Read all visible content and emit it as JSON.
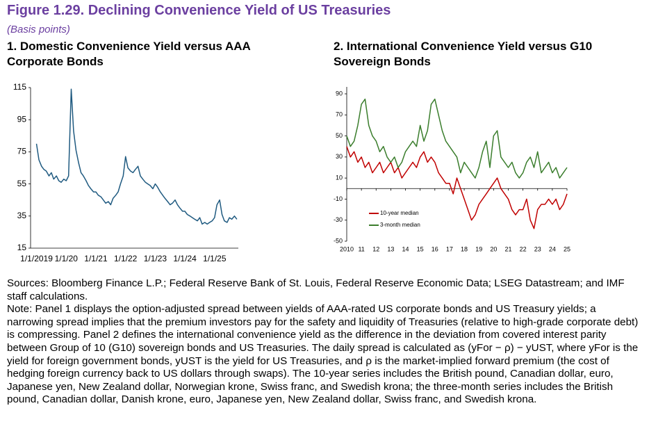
{
  "figure": {
    "title": "Figure 1.29. Declining Convenience Yield of US Treasuries",
    "subtitle": "(Basis points)",
    "sources": "Sources: Bloomberg Finance L.P.; Federal Reserve Bank of St. Louis, Federal Reserve Economic Data; LSEG Datastream; and IMF staff calculations.",
    "note": "Note: Panel 1 displays the option-adjusted spread between yields of AAA-rated US corporate bonds and US Treasury yields; a narrowing spread implies that the premium investors pay for the safety and liquidity of Treasuries (relative to high-grade corporate debt) is compressing. Panel 2 defines the international convenience yield as the difference in the deviation from covered interest parity between Group of 10 (G10) sovereign bonds and US Treasuries. The daily spread is calculated as (yFor − ρ) − yUST, where yFor is the yield for foreign government bonds, yUST is the yield for US Treasuries, and ρ is the market-implied forward premium (the cost of hedging foreign currency back to US dollars through swaps). The 10-year series includes the British pound, Canadian dollar, euro, Japanese yen, New Zealand dollar, Norwegian krone, Swiss franc, and Swedish krona; the three-month series includes the British pound, Canadian dollar, Danish krone, euro, Japanese yen, New Zealand dollar, Swiss franc, and Swedish krona."
  },
  "chart_data": [
    {
      "type": "line",
      "title": "1. Domestic Convenience Yield versus AAA Corporate Bonds",
      "color": "#1f5a80",
      "x": [
        2019,
        2019.08,
        2019.17,
        2019.25,
        2019.33,
        2019.42,
        2019.5,
        2019.58,
        2019.67,
        2019.75,
        2019.83,
        2019.92,
        2020,
        2020.08,
        2020.17,
        2020.25,
        2020.33,
        2020.42,
        2020.5,
        2020.58,
        2020.67,
        2020.75,
        2020.83,
        2020.92,
        2021,
        2021.08,
        2021.17,
        2021.25,
        2021.33,
        2021.42,
        2021.5,
        2021.58,
        2021.67,
        2021.75,
        2021.83,
        2021.92,
        2022,
        2022.08,
        2022.17,
        2022.25,
        2022.33,
        2022.42,
        2022.5,
        2022.58,
        2022.67,
        2022.75,
        2022.83,
        2022.92,
        2023,
        2023.08,
        2023.17,
        2023.25,
        2023.33,
        2023.42,
        2023.5,
        2023.58,
        2023.67,
        2023.75,
        2023.83,
        2023.92,
        2024,
        2024.08,
        2024.17,
        2024.25,
        2024.33,
        2024.42,
        2024.5,
        2024.58,
        2024.67,
        2024.75,
        2024.83,
        2024.92,
        2025,
        2025.08,
        2025.17,
        2025.25,
        2025.33,
        2025.42,
        2025.5,
        2025.58,
        2025.67,
        2025.75
      ],
      "values": [
        80,
        70,
        66,
        64,
        63,
        60,
        62,
        58,
        60,
        57,
        56,
        58,
        57,
        60,
        114,
        88,
        76,
        68,
        62,
        60,
        57,
        54,
        52,
        50,
        50,
        48,
        47,
        45,
        43,
        44,
        42,
        46,
        48,
        50,
        55,
        60,
        72,
        65,
        63,
        62,
        64,
        66,
        60,
        58,
        56,
        55,
        54,
        52,
        55,
        53,
        50,
        48,
        46,
        44,
        42,
        43,
        45,
        42,
        40,
        38,
        38,
        36,
        35,
        34,
        33,
        32,
        34,
        30,
        31,
        30,
        31,
        32,
        34,
        42,
        45,
        36,
        32,
        31,
        34,
        33,
        35,
        33
      ],
      "xlim": [
        2018.8,
        2025.8
      ],
      "xticks": [
        {
          "value": 2019,
          "label": "1/1/2019"
        },
        {
          "value": 2020,
          "label": "1/1/20"
        },
        {
          "value": 2021,
          "label": "1/1/21"
        },
        {
          "value": 2022,
          "label": "1/1/22"
        },
        {
          "value": 2023,
          "label": "1/1/23"
        },
        {
          "value": 2024,
          "label": "1/1/24"
        },
        {
          "value": 2025,
          "label": "1/1/25"
        }
      ],
      "ylim": [
        15,
        115
      ],
      "yticks": [
        15,
        35,
        55,
        75,
        95,
        115
      ]
    },
    {
      "type": "line",
      "title": "2. International Convenience Yield versus G10 Sovereign Bonds",
      "legend": "lower left",
      "x": [
        2010,
        2010.25,
        2010.5,
        2010.75,
        2011,
        2011.25,
        2011.5,
        2011.75,
        2012,
        2012.25,
        2012.5,
        2012.75,
        2013,
        2013.25,
        2013.5,
        2013.75,
        2014,
        2014.25,
        2014.5,
        2014.75,
        2015,
        2015.25,
        2015.5,
        2015.75,
        2016,
        2016.25,
        2016.5,
        2016.75,
        2017,
        2017.25,
        2017.5,
        2017.75,
        2018,
        2018.25,
        2018.5,
        2018.75,
        2019,
        2019.25,
        2019.5,
        2019.75,
        2020,
        2020.25,
        2020.5,
        2020.75,
        2021,
        2021.25,
        2021.5,
        2021.75,
        2022,
        2022.25,
        2022.5,
        2022.75,
        2023,
        2023.25,
        2023.5,
        2023.75,
        2024,
        2024.25,
        2024.5,
        2024.75,
        2025
      ],
      "series": [
        {
          "name": "10-year median",
          "color": "#c00000",
          "values": [
            40,
            30,
            35,
            25,
            30,
            20,
            25,
            15,
            20,
            25,
            15,
            20,
            25,
            15,
            20,
            10,
            15,
            20,
            25,
            20,
            30,
            35,
            25,
            30,
            25,
            15,
            10,
            5,
            5,
            -5,
            10,
            0,
            -10,
            -20,
            -30,
            -25,
            -15,
            -10,
            -5,
            0,
            5,
            10,
            0,
            -5,
            -10,
            -20,
            -25,
            -20,
            -20,
            -10,
            -30,
            -38,
            -20,
            -15,
            -15,
            -10,
            -15,
            -10,
            -20,
            -15,
            -5
          ]
        },
        {
          "name": "3-month median",
          "color": "#3a7d2c",
          "values": [
            50,
            40,
            45,
            60,
            80,
            85,
            60,
            50,
            45,
            35,
            40,
            30,
            25,
            30,
            20,
            25,
            35,
            40,
            45,
            40,
            60,
            45,
            55,
            80,
            85,
            70,
            55,
            45,
            40,
            35,
            30,
            15,
            25,
            20,
            15,
            10,
            20,
            35,
            45,
            20,
            50,
            55,
            30,
            25,
            20,
            25,
            15,
            10,
            15,
            25,
            30,
            20,
            35,
            15,
            20,
            25,
            15,
            20,
            10,
            15,
            20
          ]
        }
      ],
      "xlim": [
        2010,
        2025
      ],
      "xticks": [
        2010,
        {
          "value": 2011,
          "label": "11"
        },
        {
          "value": 2012,
          "label": "12"
        },
        {
          "value": 2013,
          "label": "13"
        },
        {
          "value": 2014,
          "label": "14"
        },
        {
          "value": 2015,
          "label": "15"
        },
        {
          "value": 2016,
          "label": "16"
        },
        {
          "value": 2017,
          "label": "17"
        },
        {
          "value": 2018,
          "label": "18"
        },
        {
          "value": 2019,
          "label": "19"
        },
        {
          "value": 2020,
          "label": "20"
        },
        {
          "value": 2021,
          "label": "21"
        },
        {
          "value": 2022,
          "label": "22"
        },
        {
          "value": 2023,
          "label": "23"
        },
        {
          "value": 2024,
          "label": "24"
        },
        {
          "value": 2025,
          "label": "25"
        }
      ],
      "ylim": [
        -50,
        90
      ],
      "yticks": [
        -50,
        -30,
        -10,
        10,
        30,
        50,
        70,
        90
      ]
    }
  ]
}
